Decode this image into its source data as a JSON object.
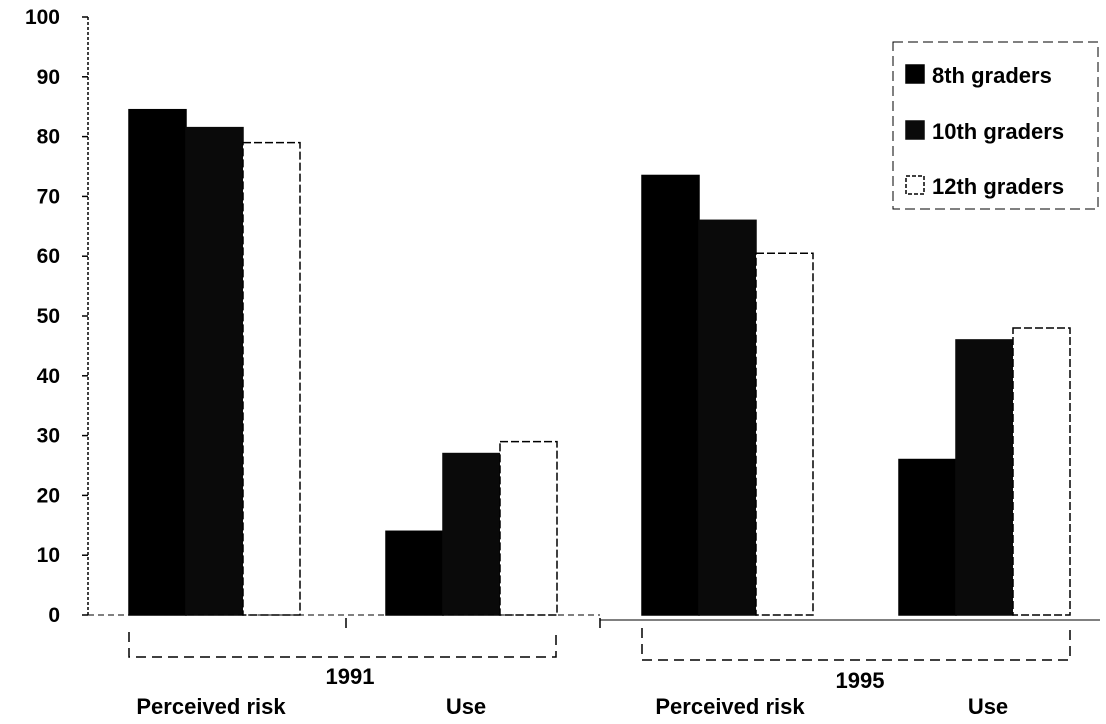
{
  "chart_data": {
    "type": "bar",
    "ylim": [
      0,
      100
    ],
    "yticks": [
      0,
      10,
      20,
      30,
      40,
      50,
      60,
      70,
      80,
      90,
      100
    ],
    "groups": [
      {
        "year": "1991",
        "measures": [
          "Perceived risk",
          "Use"
        ]
      },
      {
        "year": "1995",
        "measures": [
          "Perceived risk",
          "Use"
        ]
      }
    ],
    "categories": [
      "Perceived risk",
      "Use",
      "Perceived risk",
      "Use"
    ],
    "series": [
      {
        "name": "8th graders",
        "values": [
          84.5,
          14,
          73.5,
          26
        ]
      },
      {
        "name": "10th graders",
        "values": [
          81.5,
          27,
          66,
          46
        ]
      },
      {
        "name": "12th graders",
        "values": [
          79,
          29,
          60.5,
          48
        ]
      }
    ],
    "series_styles": [
      {
        "fill": "#000000",
        "stroke": "#000000"
      },
      {
        "fill": "#0a0a0a",
        "stroke": "#0a0a0a"
      },
      {
        "fill": "#ffffff",
        "stroke": "#000000"
      }
    ],
    "legend_position": "top-right",
    "grid": false
  }
}
